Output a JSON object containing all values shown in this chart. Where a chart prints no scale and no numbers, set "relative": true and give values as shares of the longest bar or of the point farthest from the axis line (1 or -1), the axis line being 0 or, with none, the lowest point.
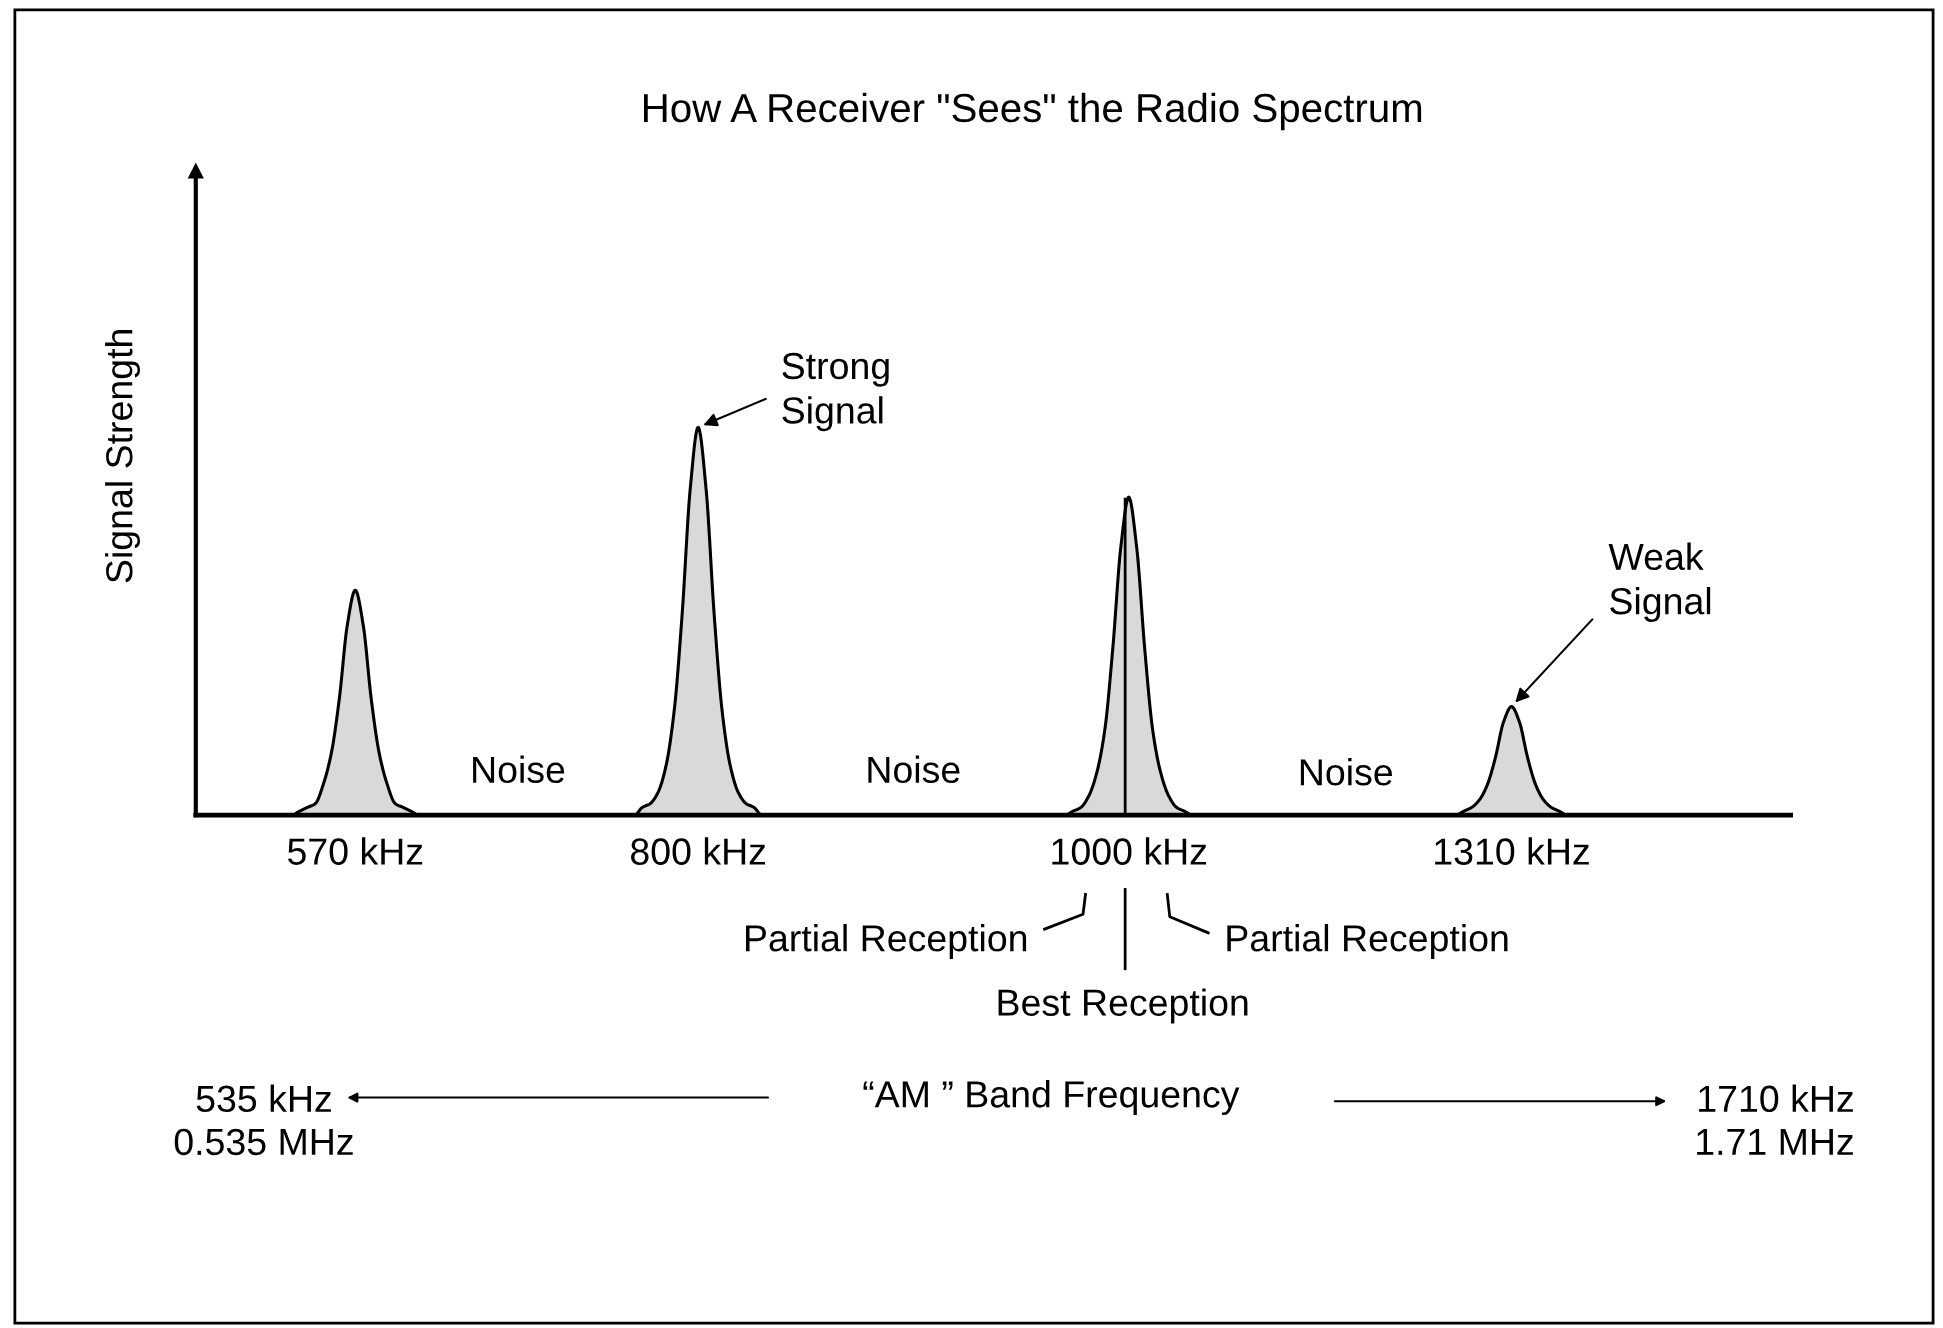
{
  "chart_data": {
    "type": "area",
    "relative": true,
    "title": "How A Receiver \"Sees\" the Radio Spectrum",
    "ylabel": "Signal Strength",
    "grid": false,
    "legend": false,
    "categories": [
      null,
      null,
      null,
      null,
      null,
      null,
      null,
      null,
      null,
      null,
      null,
      null,
      null,
      null,
      null,
      null,
      null,
      null,
      null,
      null,
      "570 kHz",
      null,
      null,
      null,
      null,
      null,
      null,
      null,
      null,
      null,
      null,
      null,
      null,
      null,
      null,
      null,
      null,
      null,
      null,
      null,
      null,
      null,
      null,
      null,
      null,
      null,
      null,
      null,
      null,
      null,
      null,
      null,
      null,
      null,
      null,
      null,
      null,
      null,
      null,
      null,
      null,
      null,
      null,
      "800 kHz",
      null,
      null,
      null,
      null,
      null,
      null,
      null,
      null,
      null,
      null,
      null,
      null,
      null,
      null,
      null,
      null,
      null,
      null,
      null,
      null,
      null,
      null,
      null,
      null,
      null,
      null,
      null,
      null,
      null,
      null,
      null,
      null,
      null,
      null,
      null,
      null,
      null,
      null,
      null,
      null,
      null,
      null,
      null,
      null,
      null,
      null,
      null,
      null,
      null,
      null,
      null,
      null,
      null,
      "1000 kHz",
      null,
      null,
      null,
      null,
      null,
      null,
      null,
      null,
      null,
      null,
      null,
      null,
      null,
      null,
      null,
      null,
      null,
      null,
      null,
      null,
      null,
      null,
      null,
      null,
      null,
      null,
      null,
      null,
      null,
      null,
      null,
      null,
      null,
      null,
      null,
      null,
      null,
      null,
      null,
      null,
      null,
      null,
      null,
      null,
      null,
      null,
      null,
      "1310 kHz",
      null,
      null,
      null,
      null,
      null,
      null,
      null,
      null,
      null,
      null,
      null,
      null,
      null,
      null,
      null,
      null,
      null,
      null,
      null,
      null,
      null,
      null,
      null,
      null,
      null,
      null,
      null,
      null,
      null,
      null,
      null,
      null,
      null,
      null,
      null
    ],
    "series": [
      {
        "color": "#d9d9d9",
        "values": [
          0,
          0,
          0,
          0,
          0,
          0,
          0,
          0,
          0,
          0,
          0,
          0,
          0,
          0.01,
          0.02,
          0.03,
          0.08,
          0.16,
          0.3,
          0.49,
          0.58,
          0.49,
          0.3,
          0.16,
          0.08,
          0.03,
          0.02,
          0.01,
          0,
          0,
          0,
          0,
          0,
          0,
          0,
          0,
          0,
          0,
          0,
          0,
          0,
          0,
          0,
          0,
          0,
          0,
          0,
          0,
          0,
          0,
          0,
          0,
          0,
          0,
          0,
          0,
          0.02,
          0.03,
          0.06,
          0.13,
          0.27,
          0.52,
          0.84,
          1,
          0.84,
          0.52,
          0.27,
          0.13,
          0.06,
          0.03,
          0.02,
          0,
          0,
          0,
          0,
          0,
          0,
          0,
          0,
          0,
          0,
          0,
          0,
          0,
          0,
          0,
          0,
          0,
          0,
          0,
          0,
          0,
          0,
          0,
          0,
          0,
          0,
          0,
          0,
          0,
          0,
          0,
          0,
          0,
          0,
          0,
          0,
          0,
          0,
          0,
          0.01,
          0.02,
          0.05,
          0.11,
          0.22,
          0.43,
          0.69,
          0.82,
          0.69,
          0.43,
          0.22,
          0.11,
          0.05,
          0.02,
          0.01,
          0,
          0,
          0,
          0,
          0,
          0,
          0,
          0,
          0,
          0,
          0,
          0,
          0,
          0,
          0,
          0,
          0,
          0,
          0,
          0,
          0,
          0,
          0,
          0,
          0,
          0,
          0,
          0,
          0,
          0,
          0,
          0,
          0,
          0,
          0.01,
          0.02,
          0.04,
          0.08,
          0.15,
          0.24,
          0.28,
          0.24,
          0.15,
          0.08,
          0.04,
          0.02,
          0.01,
          0,
          0,
          0,
          0,
          0,
          0,
          0,
          0,
          0,
          0,
          0,
          0,
          0,
          0,
          0,
          0,
          0,
          0,
          0,
          0,
          0,
          0,
          0,
          0,
          0,
          0,
          0,
          0,
          0
        ]
      }
    ],
    "annotations": [
      {
        "text": "Strong\nSignal",
        "x": "800 kHz",
        "y": 1
      },
      {
        "text": "Weak\nSignal",
        "x": "1310 kHz",
        "y": 0.28
      },
      "Noise",
      "Noise",
      "Noise",
      "Partial Reception",
      "Best Reception",
      "Partial Reception",
      "535 kHz\n0.535 MHz",
      "“AM ” Band Frequency",
      "1710 kHz\n1.71 MHz"
    ]
  }
}
